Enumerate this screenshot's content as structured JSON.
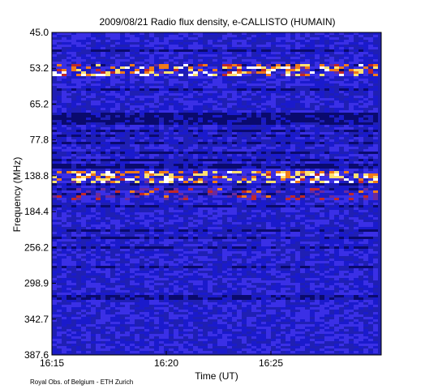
{
  "chart_data": {
    "type": "heatmap",
    "title": "2009/08/21  Radio flux density, e-CALLISTO (HUMAIN)",
    "xlabel": "Time (UT)",
    "ylabel": "Frequency (MHz)",
    "x_ticks": [
      "16:15",
      "16:20",
      "16:25"
    ],
    "y_ticks": [
      "45.0",
      "53.2",
      "65.2",
      "77.8",
      "138.8",
      "184.4",
      "256.2",
      "298.9",
      "342.7",
      "387.6"
    ],
    "x_range": [
      "16:15",
      "16:30"
    ],
    "y_range_mhz": [
      45.0,
      387.6
    ],
    "y_axis_direction": "frequency increases downward",
    "colormap": [
      "#0a0a6e",
      "#1a1acc",
      "#3a2fe6",
      "#6b2a9e",
      "#c0282a",
      "#f07a1a",
      "#ffe070",
      "#ffffff"
    ],
    "features": [
      {
        "label": "strong intermittent emission band",
        "freq_mhz": 138.8,
        "intensity": "high"
      },
      {
        "label": "emission band",
        "freq_mhz": 53.2,
        "intensity": "high"
      },
      {
        "label": "dark gap band",
        "freq_mhz": 70.0,
        "intensity": "low"
      },
      {
        "label": "weak band",
        "freq_mhz": 160.0,
        "intensity": "medium"
      }
    ],
    "grid": false
  },
  "credit": "Royal Obs. of Belgium - ETH Zurich",
  "colors": {
    "background": "#ffffff",
    "heatmap_base": "#1f1fb4"
  }
}
